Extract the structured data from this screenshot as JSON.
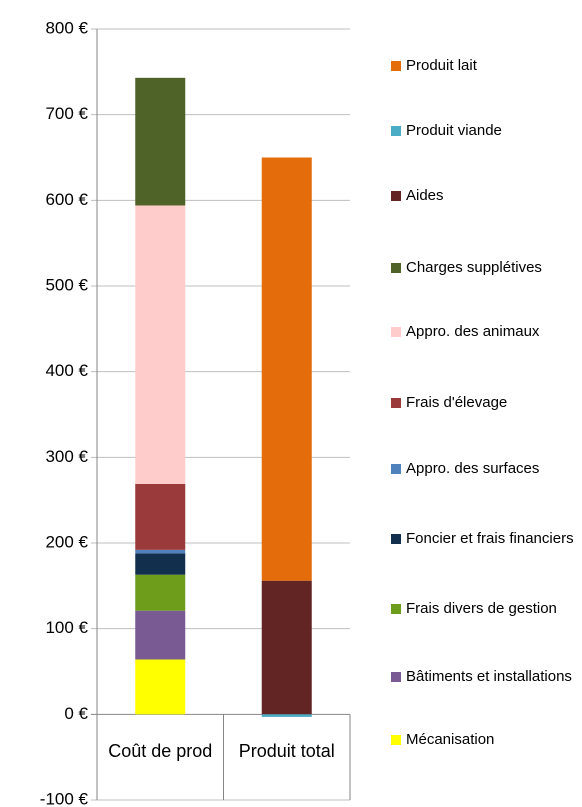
{
  "chart_data": {
    "type": "stacked-bar",
    "categories": [
      "Coût de prod",
      "Produit total"
    ],
    "series": [
      {
        "name": "Mécanisation",
        "color": "#ffff00",
        "values": [
          64,
          null
        ]
      },
      {
        "name": "Bâtiments et installations",
        "color": "#7a5a93",
        "values": [
          57,
          null
        ]
      },
      {
        "name": "Frais divers de gestion",
        "color": "#6e9d1b",
        "values": [
          42,
          null
        ]
      },
      {
        "name": "Foncier et frais financiers",
        "color": "#12304e",
        "values": [
          25,
          null
        ]
      },
      {
        "name": "Appro. des surfaces",
        "color": "#4f81bd",
        "values": [
          4,
          null
        ]
      },
      {
        "name": "Frais d'élevage",
        "color": "#9b3a3a",
        "values": [
          77,
          null
        ]
      },
      {
        "name": "Appro. des animaux",
        "color": "#ffcccc",
        "values": [
          325,
          null
        ]
      },
      {
        "name": "Charges supplétives",
        "color": "#4f6228",
        "values": [
          149,
          null
        ]
      },
      {
        "name": "Aides",
        "color": "#632523",
        "values": [
          null,
          156
        ]
      },
      {
        "name": "Produit viande",
        "color": "#4bacc6",
        "values": [
          null,
          -3
        ]
      },
      {
        "name": "Produit lait",
        "color": "#e46c0a",
        "values": [
          null,
          494
        ]
      }
    ],
    "ylim": [
      -100,
      800
    ],
    "yticks": [
      {
        "value": -100,
        "label": "-100 €"
      },
      {
        "value": 0,
        "label": "0 €"
      },
      {
        "value": 100,
        "label": "100 €"
      },
      {
        "value": 200,
        "label": "200 €"
      },
      {
        "value": 300,
        "label": "300 €"
      },
      {
        "value": 400,
        "label": "400 €"
      },
      {
        "value": 500,
        "label": "500 €"
      },
      {
        "value": 600,
        "label": "600 €"
      },
      {
        "value": 700,
        "label": "700 €"
      },
      {
        "value": 800,
        "label": "800 €"
      }
    ],
    "grid": true
  }
}
